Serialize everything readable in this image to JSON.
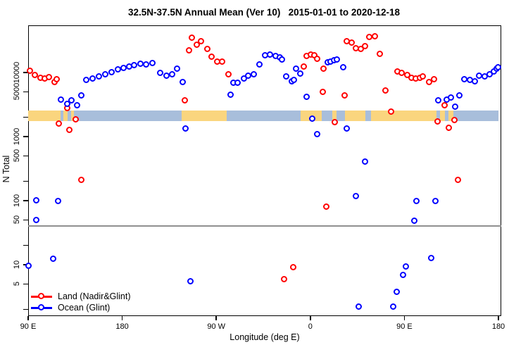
{
  "title": "32.5N-37.5N Annual Mean (Ver 10)   2015-01-01 to 2020-12-18",
  "colors": {
    "land": "#FF0000",
    "ocean": "#0000FF",
    "band_land": "#FAD57E",
    "band_ocean": "#A8BEDB",
    "reference_line": "#909090",
    "axis": "#000000"
  },
  "chart_data": {
    "type": "scatter",
    "title": "32.5N-37.5N Annual Mean (Ver 10)   2015-01-01 to 2020-12-18",
    "xlabel": "Longitude (deg E)",
    "ylabel": "N Total",
    "x_axis": {
      "note": "longitude increasing eastward from 90E, wrapping past 180 and 0 back to 180; 450 deg total span",
      "range_deg": [
        90,
        542
      ],
      "ticks": [
        {
          "lon": 90,
          "label": "90 E"
        },
        {
          "lon": 180,
          "label": "180"
        },
        {
          "lon": 270,
          "label": "90 W"
        },
        {
          "lon": 360,
          "label": "0"
        },
        {
          "lon": 450,
          "label": "90 E"
        },
        {
          "lon": 540,
          "label": "180"
        }
      ]
    },
    "y_axis": {
      "scale": "log",
      "range": [
        1.8,
        55000
      ],
      "ticks": [
        {
          "v": 10000,
          "label": "10000"
        },
        {
          "v": 5000,
          "label": "5000"
        },
        {
          "v": 1000,
          "label": "1000"
        },
        {
          "v": 500,
          "label": "500"
        },
        {
          "v": 100,
          "label": "100"
        },
        {
          "v": 50,
          "label": "50"
        },
        {
          "v": 10,
          "label": "10"
        },
        {
          "v": 5,
          "label": "5"
        }
      ],
      "minor_ticks": [
        2000,
        200,
        20,
        2
      ]
    },
    "reference_line": {
      "value": 40,
      "color": "#909090"
    },
    "coast_band": {
      "value_top": 2560,
      "value_bottom": 1750,
      "land_color": "#FAD57E",
      "ocean_color": "#A8BEDB",
      "segments": [
        [
          90,
          121,
          "land"
        ],
        [
          121,
          124,
          "ocean"
        ],
        [
          124,
          128,
          "land"
        ],
        [
          128,
          131,
          "ocean"
        ],
        [
          131,
          134,
          "land"
        ],
        [
          134,
          237,
          "ocean"
        ],
        [
          237,
          280,
          "land"
        ],
        [
          280,
          351,
          "ocean"
        ],
        [
          351,
          371,
          "land"
        ],
        [
          371,
          381,
          "ocean"
        ],
        [
          381,
          385,
          "land"
        ],
        [
          385,
          393,
          "ocean"
        ],
        [
          393,
          413,
          "land"
        ],
        [
          413,
          418,
          "ocean"
        ],
        [
          418,
          481,
          "land"
        ],
        [
          481,
          484,
          "ocean"
        ],
        [
          484,
          489,
          "land"
        ],
        [
          489,
          492,
          "ocean"
        ],
        [
          492,
          497,
          "land"
        ],
        [
          497,
          540,
          "ocean"
        ]
      ]
    },
    "legend": {
      "position": "bottom-left"
    },
    "series": [
      {
        "name": "Land (Nadir&Glint)",
        "color": "#FF0000",
        "points": [
          [
            92,
            10500
          ],
          [
            97,
            9000
          ],
          [
            102,
            8150
          ],
          [
            106,
            7950
          ],
          [
            110,
            8400
          ],
          [
            116,
            7000
          ],
          [
            118,
            7700
          ],
          [
            128,
            2750
          ],
          [
            136,
            1830
          ],
          [
            120,
            1580
          ],
          [
            130,
            1260
          ],
          [
            141,
            210
          ],
          [
            240,
            3630
          ],
          [
            244,
            21900
          ],
          [
            247,
            34600
          ],
          [
            252,
            26800
          ],
          [
            256,
            30400
          ],
          [
            262,
            23000
          ],
          [
            266,
            17500
          ],
          [
            271,
            14600
          ],
          [
            276,
            14400
          ],
          [
            282,
            9200
          ],
          [
            335,
            5.8
          ],
          [
            344,
            9
          ],
          [
            376,
            80
          ],
          [
            354,
            12200
          ],
          [
            357,
            17900
          ],
          [
            361,
            18800
          ],
          [
            364,
            18300
          ],
          [
            367,
            16200
          ],
          [
            373,
            11300
          ],
          [
            372,
            4920
          ],
          [
            384,
            1660
          ],
          [
            393,
            4330
          ],
          [
            395,
            30400
          ],
          [
            400,
            29000
          ],
          [
            404,
            23600
          ],
          [
            409,
            23000
          ],
          [
            413,
            25500
          ],
          [
            417,
            35500
          ],
          [
            422,
            36400
          ],
          [
            427,
            19300
          ],
          [
            432,
            5180
          ],
          [
            438,
            2400
          ],
          [
            502,
            210
          ],
          [
            444,
            10300
          ],
          [
            448,
            9700
          ],
          [
            453,
            9000
          ],
          [
            457,
            8200
          ],
          [
            461,
            8000
          ],
          [
            465,
            8200
          ],
          [
            468,
            8600
          ],
          [
            474,
            7000
          ],
          [
            479,
            7700
          ],
          [
            489,
            3000
          ],
          [
            482,
            1700
          ],
          [
            498,
            1780
          ],
          [
            493,
            1350
          ]
        ]
      },
      {
        "name": "Ocean (Glint)",
        "color": "#0000FF",
        "points": [
          [
            146,
            7600
          ],
          [
            152,
            7900
          ],
          [
            158,
            8600
          ],
          [
            164,
            9200
          ],
          [
            170,
            10000
          ],
          [
            176,
            11100
          ],
          [
            182,
            11600
          ],
          [
            187,
            12200
          ],
          [
            192,
            12900
          ],
          [
            198,
            13500
          ],
          [
            203,
            13200
          ],
          [
            209,
            13900
          ],
          [
            217,
            9700
          ],
          [
            223,
            8800
          ],
          [
            228,
            9200
          ],
          [
            233,
            11300
          ],
          [
            238,
            7000
          ],
          [
            122,
            3730
          ],
          [
            128,
            3200
          ],
          [
            132,
            3630
          ],
          [
            141,
            4330
          ],
          [
            137,
            3040
          ],
          [
            241,
            1310
          ],
          [
            284,
            4430
          ],
          [
            287,
            6800
          ],
          [
            291,
            6900
          ],
          [
            297,
            7900
          ],
          [
            301,
            8900
          ],
          [
            306,
            9300
          ],
          [
            312,
            13200
          ],
          [
            317,
            18400
          ],
          [
            322,
            18800
          ],
          [
            327,
            17900
          ],
          [
            331,
            17100
          ],
          [
            333,
            15800
          ],
          [
            337,
            8600
          ],
          [
            343,
            7200
          ],
          [
            345,
            7600
          ],
          [
            347,
            11300
          ],
          [
            351,
            9500
          ],
          [
            377,
            14200
          ],
          [
            380,
            14600
          ],
          [
            383,
            15400
          ],
          [
            386,
            15800
          ],
          [
            392,
            11900
          ],
          [
            357,
            4130
          ],
          [
            362,
            1890
          ],
          [
            367,
            1070
          ],
          [
            395,
            1320
          ],
          [
            98,
            100
          ],
          [
            119,
            97
          ],
          [
            98,
            49
          ],
          [
            91,
            9.5
          ],
          [
            114,
            12.2
          ],
          [
            246,
            5.4
          ],
          [
            413,
            400
          ],
          [
            404,
            117
          ],
          [
            462,
            98
          ],
          [
            480,
            98
          ],
          [
            460,
            48
          ],
          [
            476,
            12.5
          ],
          [
            452,
            9.3
          ],
          [
            449,
            6.9
          ],
          [
            443,
            3.7
          ],
          [
            407,
            2.2
          ],
          [
            440,
            2.2
          ],
          [
            483,
            3630
          ],
          [
            491,
            3730
          ],
          [
            495,
            4030
          ],
          [
            499,
            2900
          ],
          [
            503,
            4330
          ],
          [
            508,
            7700
          ],
          [
            513,
            7500
          ],
          [
            518,
            7100
          ],
          [
            522,
            8900
          ],
          [
            527,
            8500
          ],
          [
            532,
            9200
          ],
          [
            536,
            10300
          ],
          [
            539,
            11300
          ],
          [
            540,
            11900
          ]
        ]
      }
    ]
  }
}
